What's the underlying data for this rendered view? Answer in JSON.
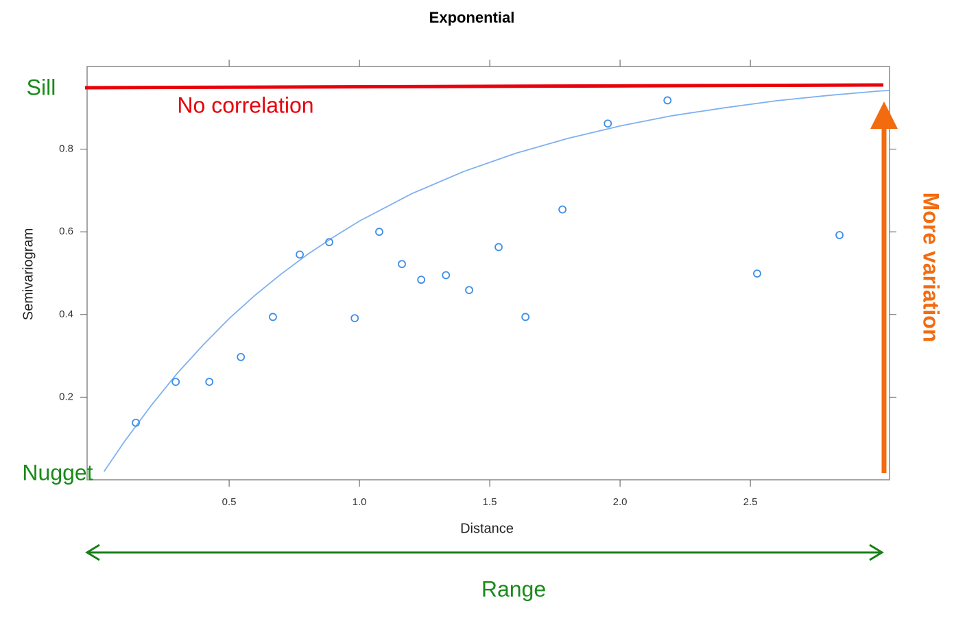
{
  "chart_data": {
    "type": "scatter",
    "title": "Exponential",
    "xlabel": "Distance",
    "ylabel": "Semivariogram",
    "xlim": [
      -0.045,
      3.034
    ],
    "ylim": [
      0,
      1.0
    ],
    "xticks": [
      0.5,
      {
        "value": 1,
        "label": "1.0"
      },
      1.5,
      {
        "value": 2,
        "label": "2.0"
      },
      2.5
    ],
    "yticks": [
      0.2,
      0.4,
      0.6,
      0.8
    ],
    "points": {
      "color": "#3d8ee8",
      "x": [
        0.142,
        0.295,
        0.424,
        0.545,
        0.668,
        0.771,
        0.884,
        0.982,
        1.076,
        1.163,
        1.237,
        1.332,
        1.421,
        1.534,
        1.637,
        1.779,
        1.953,
        2.182,
        2.526,
        2.842
      ],
      "values": [
        0.138,
        0.237,
        0.237,
        0.297,
        0.394,
        0.545,
        0.575,
        0.391,
        0.6,
        0.522,
        0.484,
        0.495,
        0.459,
        0.563,
        0.394,
        0.654,
        0.862,
        0.918,
        0.499,
        0.592
      ]
    },
    "curve": {
      "color": "#7fb0f0",
      "x": [
        0.02,
        0.1,
        0.2,
        0.3,
        0.4,
        0.5,
        0.6,
        0.7,
        0.8,
        0.9,
        1.0,
        1.2,
        1.4,
        1.6,
        1.8,
        2.0,
        2.2,
        2.4,
        2.6,
        2.8,
        3.0,
        3.034
      ],
      "values": [
        0.02,
        0.094,
        0.179,
        0.257,
        0.326,
        0.39,
        0.447,
        0.498,
        0.545,
        0.587,
        0.626,
        0.692,
        0.746,
        0.79,
        0.826,
        0.856,
        0.881,
        0.9,
        0.917,
        0.93,
        0.941,
        0.942
      ]
    },
    "annotations": {
      "sill": "Sill",
      "no_correlation": "No correlation",
      "nugget": "Nugget",
      "more_variation": "More variation",
      "range": "Range"
    }
  }
}
